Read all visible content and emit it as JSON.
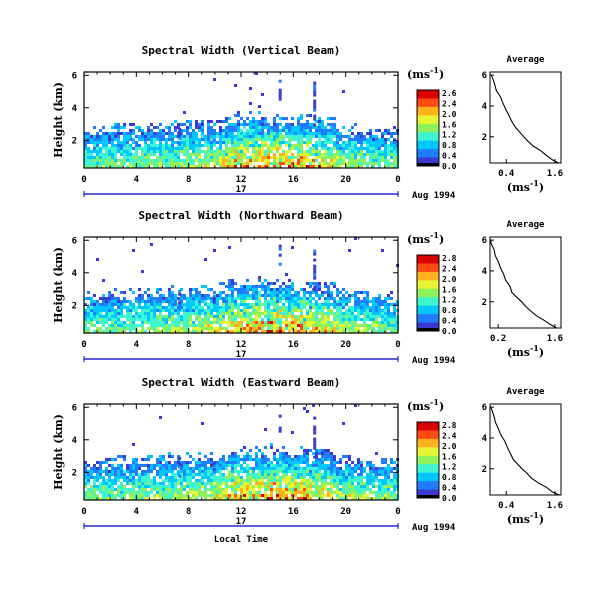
{
  "chart_data": [
    {
      "type": "heatmap",
      "title": "Spectral Width (Vertical Beam)",
      "ylabel": "Height (km)",
      "xticks": [
        "0",
        "4",
        "8",
        "12",
        "16",
        "20",
        "0"
      ],
      "yticks": [
        "6",
        "4",
        "2"
      ],
      "date_label": "17",
      "date_right": "Aug 1994",
      "unit": "(ms",
      "unit_exp": "-1",
      "colorbar_ticks": [
        "2.6",
        "2.4",
        "2.0",
        "1.6",
        "1.2",
        "0.8",
        "0.4",
        "0.0"
      ],
      "xlim": [
        0,
        24
      ],
      "ylim": [
        0.3,
        6.2
      ],
      "profile": {
        "title": "Average",
        "xticks": [
          "0.4",
          "1.6"
        ],
        "yticks": [
          "6",
          "4",
          "2"
        ],
        "xlabel": "(ms",
        "xlabel_exp": "-1",
        "xlim": [
          0.0,
          1.75
        ],
        "height": [
          0.3,
          0.5,
          0.8,
          1.1,
          1.4,
          1.7,
          2.0,
          2.3,
          2.6,
          3.0,
          3.4,
          3.8,
          4.2,
          4.6,
          5.0,
          5.4,
          5.8,
          6.0
        ],
        "width": [
          1.7,
          1.55,
          1.4,
          1.25,
          1.05,
          0.95,
          0.85,
          0.75,
          0.62,
          0.55,
          0.45,
          0.38,
          0.3,
          0.25,
          0.15,
          0.1,
          0.05,
          0.03
        ]
      }
    },
    {
      "type": "heatmap",
      "title": "Spectral Width (Northward Beam)",
      "ylabel": "Height (km)",
      "xticks": [
        "0",
        "4",
        "8",
        "12",
        "16",
        "20",
        "0"
      ],
      "yticks": [
        "6",
        "4",
        "2"
      ],
      "date_label": "17",
      "date_right": "Aug 1994",
      "unit": "(ms",
      "unit_exp": "-1",
      "colorbar_ticks": [
        "2.8",
        "2.4",
        "2.0",
        "1.6",
        "1.2",
        "0.8",
        "0.4",
        "0.0"
      ],
      "xlim": [
        0,
        24
      ],
      "ylim": [
        0.3,
        6.2
      ],
      "profile": {
        "title": "Average",
        "xticks": [
          "0.2",
          "1.6"
        ],
        "yticks": [
          "6",
          "4",
          "2"
        ],
        "xlabel": "(ms",
        "xlabel_exp": "-1",
        "xlim": [
          0.0,
          1.75
        ],
        "height": [
          0.3,
          0.5,
          0.8,
          1.1,
          1.4,
          1.7,
          2.0,
          2.3,
          2.6,
          3.0,
          3.4,
          3.8,
          4.2,
          4.6,
          5.0,
          5.4,
          5.8,
          6.0
        ],
        "width": [
          1.65,
          1.5,
          1.35,
          1.15,
          1.0,
          0.88,
          0.78,
          0.66,
          0.55,
          0.48,
          0.4,
          0.32,
          0.26,
          0.2,
          0.13,
          0.08,
          0.04,
          0.02
        ]
      }
    },
    {
      "type": "heatmap",
      "title": "Spectral Width (Eastward Beam)",
      "ylabel": "Height (km)",
      "xticks": [
        "0",
        "4",
        "8",
        "12",
        "16",
        "20",
        "0"
      ],
      "yticks": [
        "6",
        "4",
        "2"
      ],
      "date_label": "17",
      "date_right": "Aug 1994",
      "unit": "(ms",
      "unit_exp": "-1",
      "colorbar_ticks": [
        "2.8",
        "2.4",
        "2.0",
        "1.6",
        "1.2",
        "0.8",
        "0.4",
        "0.0"
      ],
      "xlim": [
        0,
        24
      ],
      "ylim": [
        0.3,
        6.2
      ],
      "xlabel": "Local Time",
      "profile": {
        "title": "Average",
        "xticks": [
          "0.4",
          "1.6"
        ],
        "yticks": [
          "6",
          "4",
          "2"
        ],
        "xlabel": "(ms",
        "xlabel_exp": "-1",
        "xlim": [
          0.0,
          1.75
        ],
        "height": [
          0.3,
          0.5,
          0.8,
          1.1,
          1.4,
          1.7,
          2.0,
          2.3,
          2.6,
          3.0,
          3.4,
          3.8,
          4.2,
          4.6,
          5.0,
          5.4,
          5.8,
          6.0
        ],
        "width": [
          1.7,
          1.55,
          1.38,
          1.2,
          1.02,
          0.9,
          0.8,
          0.7,
          0.58,
          0.5,
          0.42,
          0.35,
          0.28,
          0.22,
          0.14,
          0.09,
          0.05,
          0.03
        ]
      }
    }
  ],
  "colors": {
    "colormap": [
      "#000000",
      "#3a3acf",
      "#1f7dff",
      "#00c8ff",
      "#3ff5d0",
      "#8ef25a",
      "#e8f532",
      "#ffb21c",
      "#ff4a14",
      "#d90000"
    ],
    "axis": "#000000",
    "time_axis": "#0000cc"
  }
}
